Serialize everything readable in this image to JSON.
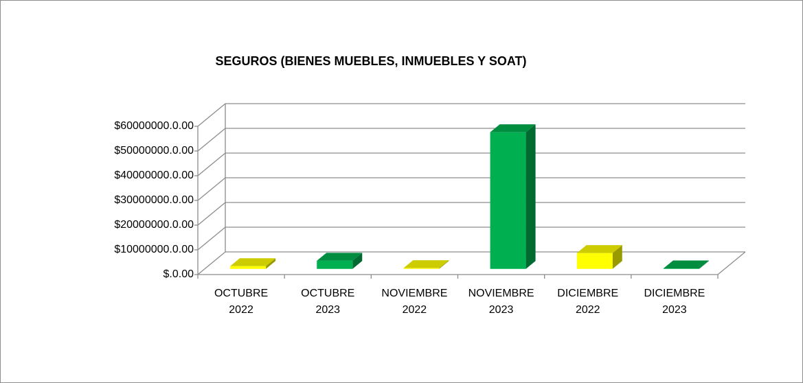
{
  "chart_data": {
    "type": "bar3d",
    "title": "SEGUROS  (BIENES  MUEBLES, INMUEBLES Y SOAT)",
    "categories": [
      "OCTUBRE 2022",
      "OCTUBRE 2023",
      "NOVIEMBRE 2022",
      "NOVIEMBRE 2023",
      "DICIEMBRE 2022",
      "DICIEMBRE 2023"
    ],
    "values": [
      1100000,
      3300000,
      300000,
      55300000,
      6400000,
      200000
    ],
    "colors": [
      "#ffff00",
      "#00b050",
      "#ffff00",
      "#00b050",
      "#ffff00",
      "#00b050"
    ],
    "ylim": [
      0,
      60000000
    ],
    "yticks": [
      {
        "value": 0,
        "label": "$.0.00"
      },
      {
        "value": 10000000,
        "label": "$10000000.0.00"
      },
      {
        "value": 20000000,
        "label": "$20000000.0.00"
      },
      {
        "value": 30000000,
        "label": "$30000000.0.00"
      },
      {
        "value": 40000000,
        "label": "$40000000.0.00"
      },
      {
        "value": 50000000,
        "label": "$50000000.0.00"
      },
      {
        "value": 60000000,
        "label": "$60000000.0.00"
      }
    ],
    "grid": true
  }
}
